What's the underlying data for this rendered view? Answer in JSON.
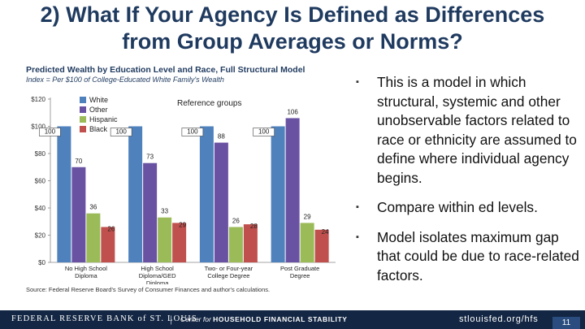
{
  "slide": {
    "title_line1": "2) What If Your Agency Is Defined as Differences",
    "title_line2": "from Group Averages or Norms?",
    "page_number": "11"
  },
  "bullets": [
    "This is a model in which structural, systemic and other unobservable factors related to race or ethnicity are assumed to define where individual agency begins.",
    "Compare within ed levels.",
    "Model isolates maximum gap that could be due to race-related factors."
  ],
  "footer": {
    "org": "FEDERAL RESERVE BANK of ST. LOUIS",
    "separator": "|",
    "center_prefix": "Center for",
    "center_name": "HOUSEHOLD FINANCIAL STABILITY",
    "url": "stlouisfed.org/hfs"
  },
  "chart_data": {
    "type": "bar",
    "title": "Predicted Wealth by Education Level and Race, Full Structural Model",
    "subtitle": "Index = Per $100 of College-Educated White Family's Wealth",
    "annotation": "Reference groups",
    "source": "Source: Federal Reserve Board's Survey of Consumer Finances and author's calculations.",
    "ylim": [
      0,
      120
    ],
    "yticks": [
      "$0",
      "$20",
      "$40",
      "$60",
      "$80",
      "$100",
      "$120"
    ],
    "categories": [
      "No High School Diploma",
      "High School Diploma/GED Diploma",
      "Two- or Four-year College Degree",
      "Post Graduate Degree"
    ],
    "series": [
      {
        "name": "White",
        "color": "#4f81bd",
        "values": [
          100,
          100,
          100,
          100
        ]
      },
      {
        "name": "Other",
        "color": "#6a52a3",
        "values": [
          70,
          73,
          88,
          106
        ]
      },
      {
        "name": "Hispanic",
        "color": "#9bbb59",
        "values": [
          36,
          33,
          26,
          29
        ]
      },
      {
        "name": "Black",
        "color": "#c0504d",
        "values": [
          26,
          29,
          28,
          24
        ]
      }
    ]
  }
}
